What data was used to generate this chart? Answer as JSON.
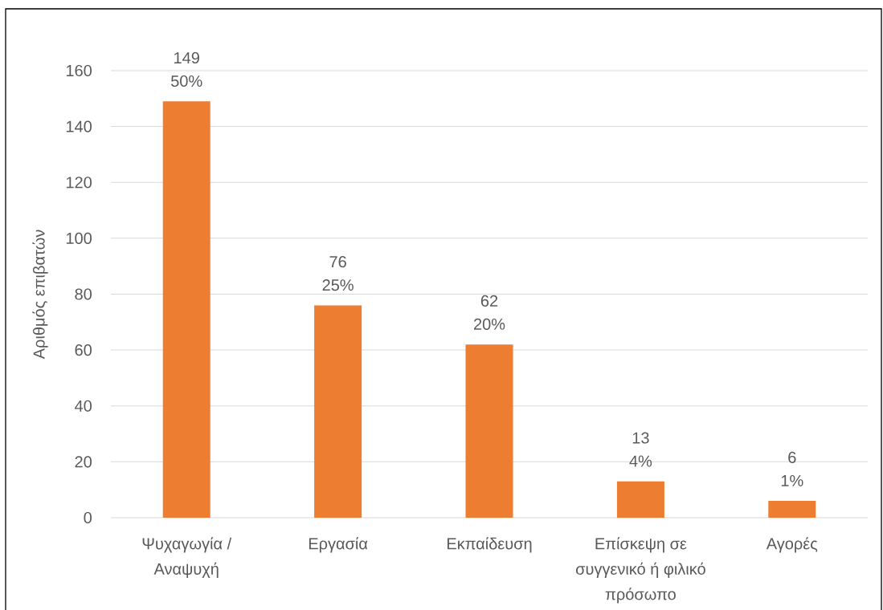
{
  "chart_data": {
    "type": "bar",
    "ylabel": "Αριθμός επιβατών",
    "categories": [
      "Ψυχαγωγία / Αναψυχή",
      "Εργασία",
      "Εκπαίδευση",
      "Επίσκεψη σε συγγενικό ή φιλικό πρόσωπο",
      "Αγορές"
    ],
    "values": [
      149,
      76,
      62,
      13,
      6
    ],
    "color": "#ed7d31",
    "value_labels": [
      "149 50%",
      "76 25%",
      "62 20%",
      "13 4%",
      "6 1%"
    ],
    "ylim": [
      0,
      160
    ],
    "yticks": [
      0,
      20,
      40,
      60,
      80,
      100,
      120,
      140,
      160
    ],
    "grid": "y"
  }
}
